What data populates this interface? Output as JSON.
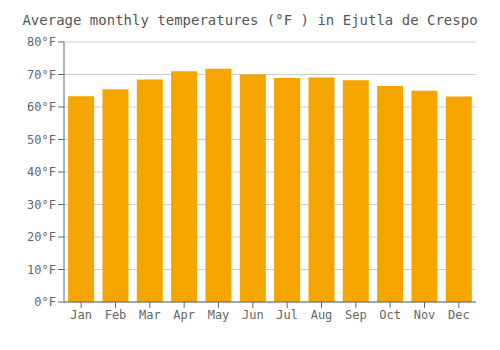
{
  "chart_data": {
    "type": "bar",
    "title": "Average monthly temperatures (°F ) in Ejutla de Crespo",
    "categories": [
      "Jan",
      "Feb",
      "Mar",
      "Apr",
      "May",
      "Jun",
      "Jul",
      "Aug",
      "Sep",
      "Oct",
      "Nov",
      "Dec"
    ],
    "values": [
      63.3,
      65.5,
      68.5,
      71.0,
      71.8,
      70.0,
      68.9,
      69.1,
      68.2,
      66.5,
      65.0,
      63.2
    ],
    "color": "#F5A500",
    "ylim": [
      0,
      80
    ],
    "yticks": [
      {
        "value": 0,
        "label": "0°F"
      },
      {
        "value": 10,
        "label": "10°F"
      },
      {
        "value": 20,
        "label": "20°F"
      },
      {
        "value": 30,
        "label": "30°F"
      },
      {
        "value": 40,
        "label": "40°F"
      },
      {
        "value": 50,
        "label": "50°F"
      },
      {
        "value": 60,
        "label": "60°F"
      },
      {
        "value": 70,
        "label": "70°F"
      },
      {
        "value": 80,
        "label": "80°F"
      }
    ],
    "grid": true
  }
}
